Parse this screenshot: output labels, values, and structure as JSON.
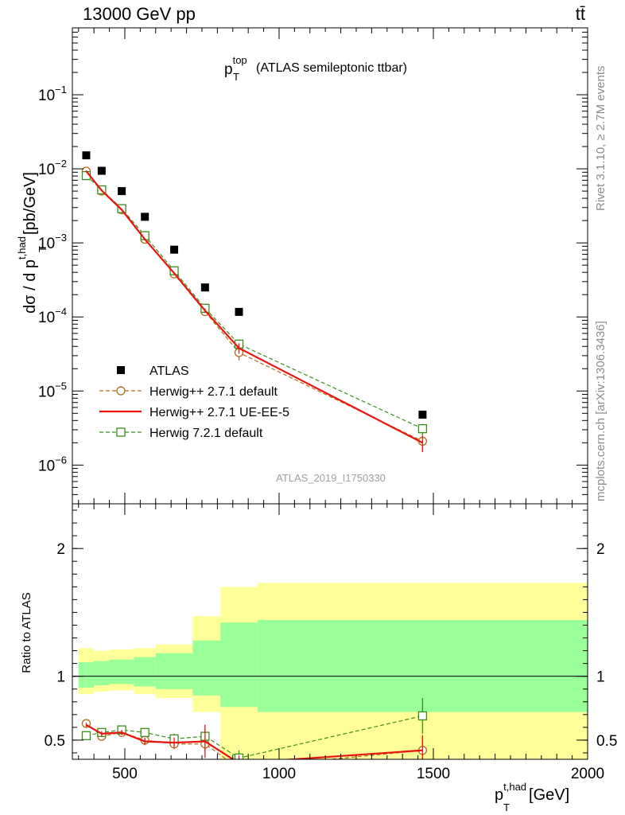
{
  "header": {
    "left": "13000 GeV pp",
    "right": "tt̄"
  },
  "side_labels": {
    "rivet": "Rivet 3.1.10, ≥ 2.7M events",
    "mcplots": "mcplots.cern.ch [arXiv:1306.3436]"
  },
  "watermark": "ATLAS_2019_I1750330",
  "chart_data": [
    {
      "type": "scatter",
      "title_main": "p",
      "title_sup": "top",
      "title_sub": "T",
      "title_rest": "(ATLAS semileptonic ttbar)",
      "ylabel": "dσ / d p_T^{t,had} [pb/GeV]",
      "ylabel_parts": {
        "a": "dσ / d p",
        "sup": "t,had",
        "sub": "T",
        "b": "[pb/GeV]"
      },
      "yscale": "log",
      "xlim": [
        330,
        2000
      ],
      "ylim": [
        3e-07,
        0.8
      ],
      "ytick_labels": [
        {
          "v": 1e-06,
          "base": "10",
          "exp": "−6"
        },
        {
          "v": 1e-05,
          "base": "10",
          "exp": "−5"
        },
        {
          "v": 0.0001,
          "base": "10",
          "exp": "−4"
        },
        {
          "v": 0.001,
          "base": "10",
          "exp": "−3"
        },
        {
          "v": 0.01,
          "base": "10",
          "exp": "−2"
        },
        {
          "v": 0.1,
          "base": "10",
          "exp": "−1"
        }
      ],
      "legend_placement": "lower-left",
      "series": [
        {
          "name": "ATLAS",
          "color": "#000000",
          "marker": "filled-square",
          "x": [
            375,
            425,
            490,
            565,
            660,
            760,
            870,
            1465
          ],
          "y": [
            0.0152,
            0.0094,
            0.005,
            0.00225,
            0.00081,
            0.00025,
            0.000117,
            4.8e-06
          ]
        },
        {
          "name": "Herwig++ 2.7.1 default",
          "color": "#b36b1a",
          "marker": "open-circle",
          "dash": "5,3",
          "x": [
            375,
            425,
            490,
            565,
            660,
            760,
            870,
            1465
          ],
          "y": [
            0.0093,
            0.005,
            0.0028,
            0.00112,
            0.00038,
            0.000118,
            3.3e-05,
            2.1e-06
          ],
          "yerr": [
            0.0002,
            0.0001,
            6e-05,
            3e-05,
            1e-05,
            8e-06,
            7e-06,
            6e-07
          ]
        },
        {
          "name": "Herwig++ 2.7.1 UE-EE-5",
          "color": "#e8150f",
          "marker": "none",
          "dash": "",
          "x": [
            375,
            425,
            490,
            565,
            660,
            760,
            870,
            1465
          ],
          "y": [
            0.0093,
            0.0051,
            0.0028,
            0.00112,
            0.00039,
            0.000122,
            3.8e-05,
            2e-06
          ],
          "yerr": [
            0.0002,
            0.0001,
            6e-05,
            3e-05,
            1e-05,
            8e-06,
            6e-06,
            5e-07
          ]
        },
        {
          "name": "Herwig 7.2.1 default",
          "color": "#3a8f1a",
          "marker": "open-square",
          "dash": "5,3",
          "x": [
            375,
            425,
            490,
            565,
            660,
            760,
            870,
            1465
          ],
          "y": [
            0.0081,
            0.0052,
            0.0029,
            0.00125,
            0.00042,
            0.000131,
            4.3e-05,
            3.1e-06
          ],
          "yerr": [
            0.0002,
            0.0001,
            6e-05,
            3e-05,
            1e-05,
            8e-06,
            5e-06,
            5e-07
          ]
        }
      ]
    },
    {
      "type": "scatter",
      "ylabel": "Ratio to ATLAS",
      "xlabel_parts": {
        "a": "p",
        "sup": "t,had",
        "sub": "T",
        "b": "[GeV]"
      },
      "xlim": [
        330,
        2000
      ],
      "ylim": [
        0.35,
        2.35
      ],
      "yticks_major": [
        0.5,
        1,
        2
      ],
      "ytick_labels": [
        "0.5",
        "1",
        "2"
      ],
      "xticks_major": [
        500,
        1000,
        1500,
        2000
      ],
      "xtick_labels": [
        "500",
        "1000",
        "1500",
        "2000"
      ],
      "reference_line": 1,
      "bands": {
        "edges": [
          350,
          400,
          450,
          530,
          600,
          720,
          810,
          930,
          2000
        ],
        "inner_low": [
          0.91,
          0.93,
          0.94,
          0.92,
          0.9,
          0.85,
          0.76,
          0.72
        ],
        "inner_high": [
          1.11,
          1.12,
          1.13,
          1.15,
          1.18,
          1.28,
          1.42,
          1.44
        ],
        "outer_low": [
          0.86,
          0.88,
          0.89,
          0.86,
          0.83,
          0.72,
          0.2,
          0.2
        ],
        "outer_high": [
          1.22,
          1.2,
          1.21,
          1.22,
          1.25,
          1.47,
          1.7,
          1.73
        ],
        "inner_color": "#99ff99",
        "outer_color": "#ffff99"
      },
      "series": [
        {
          "name": "Herwig++ 2.7.1 default",
          "color": "#b36b1a",
          "marker": "open-circle",
          "dash": "5,3",
          "x": [
            375,
            425,
            490,
            565,
            660,
            760,
            870,
            1465
          ],
          "y": [
            0.63,
            0.53,
            0.56,
            0.5,
            0.47,
            0.47,
            0.28,
            0.42
          ],
          "yerr": [
            0.015,
            0.02,
            0.02,
            0.03,
            0.04,
            0.06,
            0.06,
            0.12
          ]
        },
        {
          "name": "Herwig++ 2.7.1 UE-EE-5",
          "color": "#e8150f",
          "marker": "none",
          "dash": "",
          "x": [
            375,
            425,
            490,
            565,
            660,
            760,
            870,
            1465
          ],
          "y": [
            0.62,
            0.55,
            0.56,
            0.49,
            0.48,
            0.49,
            0.32,
            0.42
          ],
          "yerr": [
            0.015,
            0.02,
            0.02,
            0.03,
            0.04,
            0.13,
            0.06,
            0.12
          ]
        },
        {
          "name": "Herwig 7.2.1 default",
          "color": "#3a8f1a",
          "marker": "open-square",
          "dash": "5,3",
          "x": [
            375,
            425,
            490,
            565,
            660,
            760,
            870,
            1465
          ],
          "y": [
            0.535,
            0.56,
            0.58,
            0.56,
            0.51,
            0.53,
            0.36,
            0.69
          ],
          "yerr": [
            0.015,
            0.02,
            0.02,
            0.03,
            0.04,
            0.06,
            0.06,
            0.14
          ]
        }
      ]
    }
  ]
}
